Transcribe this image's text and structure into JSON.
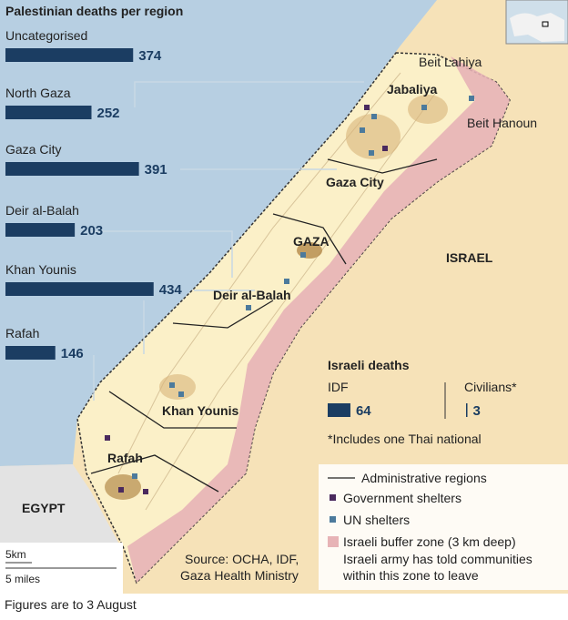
{
  "title": "Palestinian deaths per region",
  "regions": [
    {
      "name": "Uncategorised",
      "deaths": 374
    },
    {
      "name": "North Gaza",
      "deaths": 252
    },
    {
      "name": "Gaza City",
      "deaths": 391
    },
    {
      "name": "Deir al-Balah",
      "deaths": 203
    },
    {
      "name": "Khan Younis",
      "deaths": 434
    },
    {
      "name": "Rafah",
      "deaths": 146
    }
  ],
  "israeli_deaths": {
    "title": "Israeli deaths",
    "groups": [
      {
        "name": "IDF",
        "deaths": 64
      },
      {
        "name": "Civilians*",
        "deaths": 3
      }
    ],
    "note": "*Includes one Thai national"
  },
  "map_labels": [
    "Beit Lahiya",
    "Jabaliya",
    "Beit Hanoun",
    "Gaza City",
    "GAZA",
    "ISRAEL",
    "Deir al-Balah",
    "Khan Younis",
    "Rafah",
    "EGYPT"
  ],
  "legend": [
    "Administrative regions",
    "Government shelters",
    "UN shelters",
    "Israeli buffer zone (3 km deep)",
    "Israeli army has told communities",
    "within this zone to leave"
  ],
  "source": [
    "Source: OCHA, IDF,",
    "Gaza Health Ministry"
  ],
  "scale": [
    "5km",
    "5 miles"
  ],
  "footnote": "Figures are to 3 August"
}
